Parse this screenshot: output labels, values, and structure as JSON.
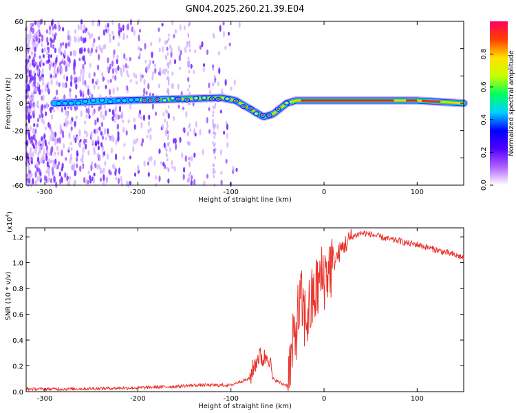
{
  "title": "GN04.2025.260.21.39.E04",
  "chart_data": [
    {
      "type": "heatmap",
      "xlabel": "Height of straight line (km)",
      "ylabel": "Frequency (Hz)",
      "xlim": [
        -320,
        150
      ],
      "ylim": [
        -60,
        60
      ],
      "xticks": [
        -300,
        -200,
        -100,
        0,
        100
      ],
      "yticks": [
        -60,
        -40,
        -20,
        0,
        20,
        40,
        60
      ],
      "ridge": [
        {
          "x": -290,
          "y": 0
        },
        {
          "x": -220,
          "y": 2
        },
        {
          "x": -160,
          "y": 3
        },
        {
          "x": -110,
          "y": 4
        },
        {
          "x": -95,
          "y": 2
        },
        {
          "x": -80,
          "y": -4
        },
        {
          "x": -65,
          "y": -10
        },
        {
          "x": -55,
          "y": -8
        },
        {
          "x": -40,
          "y": 0
        },
        {
          "x": -30,
          "y": 2
        },
        {
          "x": 0,
          "y": 2
        },
        {
          "x": 50,
          "y": 2
        },
        {
          "x": 100,
          "y": 2
        },
        {
          "x": 150,
          "y": 0
        }
      ],
      "colorbar": {
        "label": "Normalized spectral amplitude",
        "ticks": [
          "0.0",
          "0.2",
          "0.4",
          "0.6",
          "0.8"
        ],
        "range": [
          0,
          1
        ],
        "colors": [
          "#ffffff",
          "#b060ff",
          "#5000ff",
          "#0000ff",
          "#00d0ff",
          "#00ff60",
          "#c8ff00",
          "#ffe000",
          "#ff4000",
          "#ff0060"
        ]
      },
      "grid": false
    },
    {
      "type": "line",
      "xlabel": "Height of straight line (km)",
      "ylabel": "SNR (10 * v/v)",
      "multiplier": "(x10",
      "multiplier_exp": "4",
      "multiplier_close": ")",
      "xlim": [
        -320,
        150
      ],
      "ylim": [
        0,
        1.27
      ],
      "xticks": [
        -300,
        -200,
        -100,
        0,
        100
      ],
      "yticks": [
        "0.0",
        "0.2",
        "0.4",
        "0.6",
        "0.8",
        "1.0",
        "1.2"
      ],
      "color": "#e8322a",
      "series": [
        {
          "x": [
            -320,
            -280,
            -240,
            -200,
            -160,
            -140,
            -120,
            -100,
            -90,
            -80,
            -75,
            -70,
            -65,
            -60,
            -55,
            -50,
            -45,
            -40,
            -35,
            -30,
            -25,
            -20,
            -15,
            -10,
            -5,
            0,
            10,
            20,
            30,
            40,
            50,
            60,
            70,
            80,
            90,
            100,
            110,
            120,
            130,
            140,
            150
          ],
          "y": [
            0.02,
            0.02,
            0.025,
            0.03,
            0.04,
            0.05,
            0.05,
            0.05,
            0.08,
            0.1,
            0.2,
            0.28,
            0.25,
            0.3,
            0.1,
            0.08,
            0.06,
            0.05,
            0.25,
            0.5,
            0.7,
            0.55,
            0.65,
            0.75,
            0.85,
            0.9,
            1.0,
            1.12,
            1.2,
            1.23,
            1.22,
            1.2,
            1.18,
            1.17,
            1.15,
            1.14,
            1.12,
            1.1,
            1.08,
            1.06,
            1.04
          ]
        }
      ]
    }
  ]
}
